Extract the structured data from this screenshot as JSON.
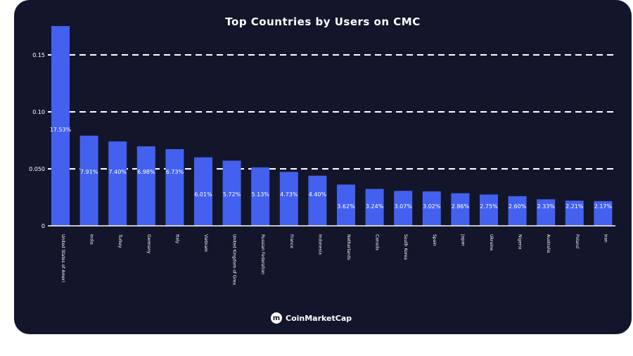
{
  "chart_data": {
    "type": "bar",
    "title": "Top Countries by Users on CMC",
    "categories": [
      "United States of America",
      "India",
      "Turkey",
      "Germany",
      "Italy",
      "Vietnam",
      "United Kingdom of Great Britain and Northern Ireland",
      "Russian Federation",
      "France",
      "Indonesia",
      "Netherlands",
      "Canada",
      "South Korea",
      "Spain",
      "Japan",
      "Ukraine",
      "Nigeria",
      "Australia",
      "Poland",
      "Iran"
    ],
    "values": [
      0.1753,
      0.0791,
      0.074,
      0.0698,
      0.0673,
      0.0601,
      0.0572,
      0.0513,
      0.0473,
      0.044,
      0.0362,
      0.0324,
      0.0307,
      0.0302,
      0.0286,
      0.0275,
      0.026,
      0.0233,
      0.0221,
      0.0217
    ],
    "data_labels": [
      "17.53%",
      "7.91%",
      "7.40%",
      "6.98%",
      "6.73%",
      "6.01%",
      "5.72%",
      "5.13%",
      "4.73%",
      "4.40%",
      "3.62%",
      "3.24%",
      "3.07%",
      "3.02%",
      "2.86%",
      "2.75%",
      "2.60%",
      "2.33%",
      "2.21%",
      "2.17%"
    ],
    "yticks": [
      0,
      0.05,
      0.1,
      0.15
    ],
    "ytick_labels": [
      "0",
      "0.050",
      "0.10",
      "0.15"
    ],
    "ylim": [
      0,
      0.175
    ],
    "grid": "dashed horizontal",
    "bar_color": "#4361ee"
  },
  "footer": {
    "brand": "CoinMarketCap"
  }
}
